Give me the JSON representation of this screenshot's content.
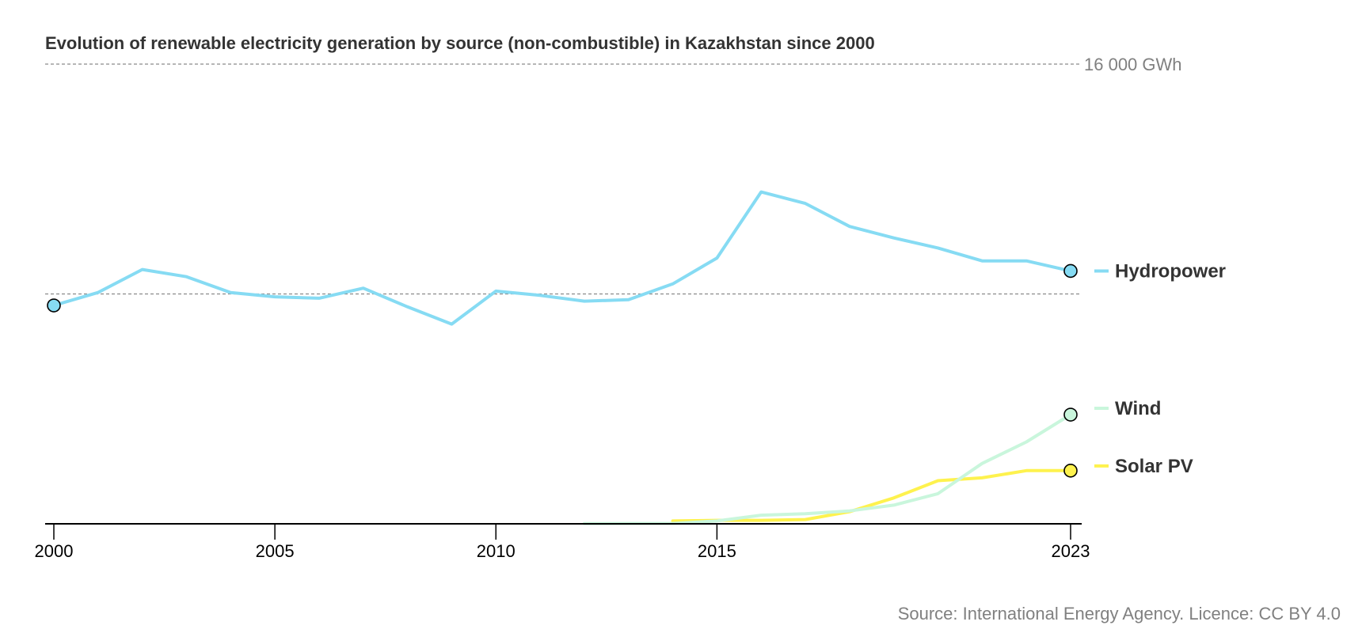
{
  "chart_data": {
    "type": "line",
    "title": "Evolution of renewable electricity generation by source (non-combustible) in Kazakhstan since 2000",
    "source": "Source: International Energy Agency. Licence: CC BY 4.0",
    "xlabel": "",
    "ylabel": "",
    "x_tick_labels": [
      "2000",
      "2005",
      "2010",
      "2015",
      "2023"
    ],
    "x_ticks": [
      2000,
      2005,
      2010,
      2015,
      2023
    ],
    "xlim": [
      2000,
      2023
    ],
    "ylim": [
      0,
      16000
    ],
    "y_unit": "GWh",
    "reference_lines": [
      {
        "value": 16000,
        "label": "16 000 GWh"
      },
      {
        "value": 8000,
        "label": ""
      }
    ],
    "grid": false,
    "legend": "direct labels at line ends (right)",
    "series": [
      {
        "name": "Hydropower",
        "color": "#86dbf3",
        "start_year": 2000,
        "values": [
          7600,
          8050,
          8850,
          8600,
          8050,
          7900,
          7850,
          8200,
          7550,
          6950,
          8100,
          7950,
          7750,
          7800,
          8350,
          9250,
          11550,
          11150,
          10350,
          9950,
          9600,
          9150,
          9150,
          8800
        ]
      },
      {
        "name": "Wind",
        "color": "#c9f6dc",
        "start_year": 2012,
        "values": [
          5,
          10,
          15,
          100,
          300,
          350,
          450,
          650,
          1050,
          2100,
          2850,
          3800
        ]
      },
      {
        "name": "Solar PV",
        "color": "#fef24e",
        "start_year": 2014,
        "values": [
          100,
          120,
          120,
          150,
          420,
          900,
          1500,
          1600,
          1850,
          1850
        ]
      }
    ]
  }
}
